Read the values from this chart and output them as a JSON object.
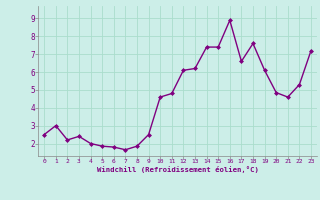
{
  "x": [
    0,
    1,
    2,
    3,
    4,
    5,
    6,
    7,
    8,
    9,
    10,
    11,
    12,
    13,
    14,
    15,
    16,
    17,
    18,
    19,
    20,
    21,
    22,
    23
  ],
  "y": [
    2.5,
    3.0,
    2.2,
    2.4,
    2.0,
    1.85,
    1.8,
    1.65,
    1.85,
    2.5,
    4.6,
    4.8,
    6.1,
    6.2,
    7.4,
    7.4,
    8.9,
    6.6,
    7.6,
    6.1,
    4.85,
    4.6,
    5.3,
    7.2
  ],
  "line_color": "#800080",
  "marker": "D",
  "marker_size": 2,
  "xlim": [
    -0.5,
    23.5
  ],
  "ylim": [
    1.3,
    9.7
  ],
  "yticks": [
    2,
    3,
    4,
    5,
    6,
    7,
    8,
    9
  ],
  "xticks": [
    0,
    1,
    2,
    3,
    4,
    5,
    6,
    7,
    8,
    9,
    10,
    11,
    12,
    13,
    14,
    15,
    16,
    17,
    18,
    19,
    20,
    21,
    22,
    23
  ],
  "xlabel": "Windchill (Refroidissement éolien,°C)",
  "bg_color": "#cceee8",
  "grid_color": "#aaddcc",
  "tick_label_color": "#800080",
  "axis_label_color": "#800080",
  "linewidth": 1.0
}
